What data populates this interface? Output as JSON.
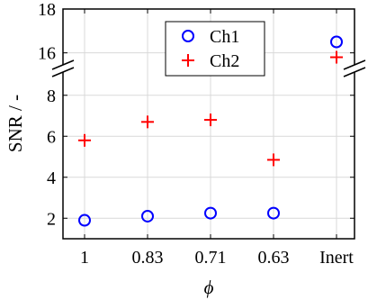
{
  "chart_data": {
    "type": "scatter",
    "xlabel": "ϕ",
    "ylabel": "SNR / -",
    "categories": [
      "1",
      "0.83",
      "0.71",
      "0.63",
      "Inert"
    ],
    "y_axis_break": {
      "lower_range": [
        1,
        9
      ],
      "upper_range": [
        15,
        18
      ]
    },
    "yticks": [
      2,
      4,
      6,
      8,
      16,
      18
    ],
    "grid": true,
    "legend_position": "top-center",
    "series": [
      {
        "name": "Ch1",
        "marker": "circle",
        "color": "#0000ff",
        "values": [
          1.9,
          2.1,
          2.25,
          2.25,
          16.5
        ]
      },
      {
        "name": "Ch2",
        "marker": "plus",
        "color": "#ff0000",
        "values": [
          5.8,
          6.7,
          6.8,
          4.85,
          15.8
        ]
      }
    ]
  }
}
